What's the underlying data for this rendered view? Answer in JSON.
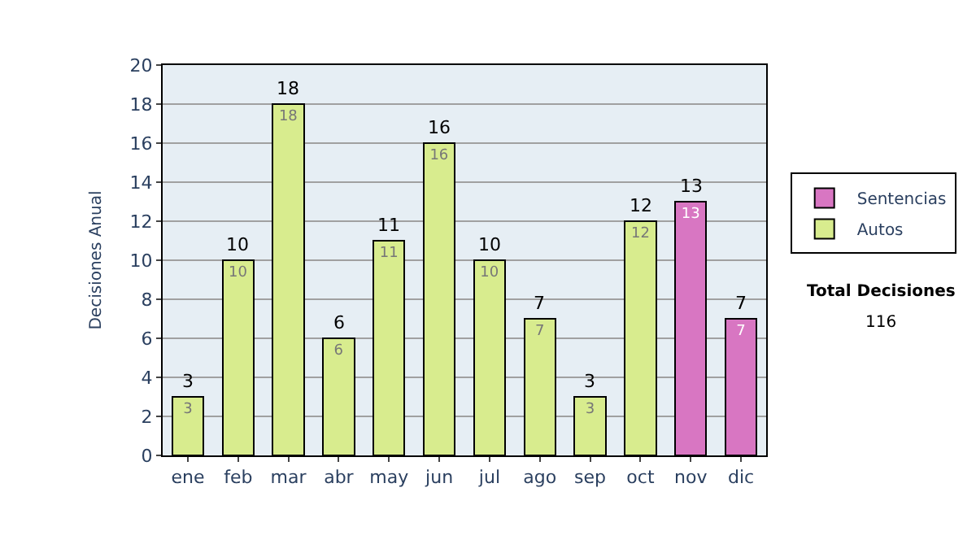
{
  "chart_data": {
    "type": "bar",
    "stacked": true,
    "ylabel": "Decisiones Anual",
    "categories": [
      "ene",
      "feb",
      "mar",
      "abr",
      "may",
      "jun",
      "jul",
      "ago",
      "sep",
      "oct",
      "nov",
      "dic"
    ],
    "series": [
      {
        "name": "Autos",
        "color": "#d8ec8e",
        "values": [
          3,
          10,
          18,
          6,
          11,
          16,
          10,
          7,
          3,
          12,
          null,
          null
        ]
      },
      {
        "name": "Sentencias",
        "color": "#d876c2",
        "values": [
          null,
          null,
          null,
          null,
          null,
          null,
          null,
          null,
          null,
          null,
          13,
          7
        ]
      }
    ],
    "totals": [
      "3",
      "10",
      "18",
      "6",
      "11",
      "16",
      "10",
      "7",
      "3",
      "12",
      "13",
      "7"
    ],
    "data_labels": true,
    "ylim": [
      0,
      20
    ],
    "yticks": [
      0,
      2,
      4,
      6,
      8,
      10,
      12,
      14,
      16,
      18,
      20
    ],
    "grid": "y",
    "legend": "right",
    "annotations": [
      "Total Decisiones",
      "116"
    ]
  }
}
